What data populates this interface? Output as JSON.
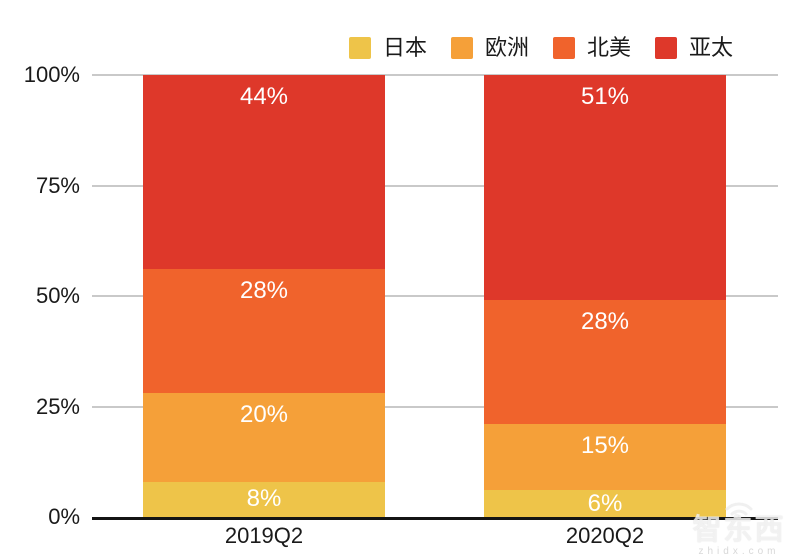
{
  "chart_data": {
    "type": "bar",
    "stacked": true,
    "title": "",
    "categories": [
      "2019Q2",
      "2020Q2"
    ],
    "series": [
      {
        "name": "日本",
        "color": "#EEC449",
        "values": [
          8,
          6
        ]
      },
      {
        "name": "欧洲",
        "color": "#F5A039",
        "values": [
          20,
          15
        ]
      },
      {
        "name": "北美",
        "color": "#F0632C",
        "values": [
          28,
          28
        ]
      },
      {
        "name": "亚太",
        "color": "#DE382A",
        "values": [
          44,
          51
        ]
      }
    ],
    "y_ticks": [
      "100%",
      "75%",
      "50%",
      "25%",
      "0%"
    ],
    "ylim": [
      0,
      100
    ],
    "value_suffix": "%",
    "grid": true,
    "legend_position": "top-right",
    "grid_color": "#c9c9c9",
    "axis_color": "#141414",
    "label_color": "#ffffff"
  },
  "watermark": {
    "title": "智东西",
    "domain": "zhidx.com"
  }
}
